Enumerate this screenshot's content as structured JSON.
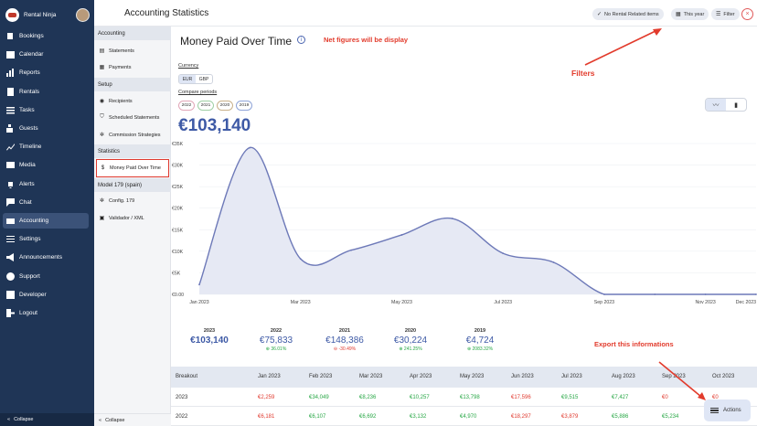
{
  "brand": {
    "name": "Rental Ninja"
  },
  "sidebar": {
    "items": [
      {
        "label": "Bookings",
        "icon": "book-icon"
      },
      {
        "label": "Calendar",
        "icon": "calendar-icon"
      },
      {
        "label": "Reports",
        "icon": "bar-chart-icon"
      },
      {
        "label": "Rentals",
        "icon": "building-icon"
      },
      {
        "label": "Tasks",
        "icon": "tasks-icon"
      },
      {
        "label": "Guests",
        "icon": "guests-icon"
      },
      {
        "label": "Timeline",
        "icon": "trend-icon"
      },
      {
        "label": "Media",
        "icon": "image-icon"
      },
      {
        "label": "Alerts",
        "icon": "bell-icon"
      },
      {
        "label": "Chat",
        "icon": "chat-icon"
      },
      {
        "label": "Accounting",
        "icon": "wallet-icon",
        "active": true
      },
      {
        "label": "Settings",
        "icon": "sliders-icon"
      },
      {
        "label": "Announcements",
        "icon": "megaphone-icon"
      },
      {
        "label": "Support",
        "icon": "help-icon"
      },
      {
        "label": "Developer",
        "icon": "code-icon"
      },
      {
        "label": "Logout",
        "icon": "logout-icon"
      }
    ],
    "collapse": "Collapse"
  },
  "header": {
    "title": "Accounting Statistics",
    "pill_rental": "No Rental Related items",
    "pill_period": "This year",
    "pill_filter": "Filter"
  },
  "subnav": {
    "sections": [
      {
        "title": "Accounting",
        "items": [
          "Statements",
          "Payments"
        ]
      },
      {
        "title": "Setup",
        "items": [
          "Recipients",
          "Scheduled Statements",
          "Commission Strategies"
        ]
      },
      {
        "title": "Statistics",
        "items": [
          "Money Paid Over Time"
        ]
      },
      {
        "title": "Model 179 (spain)",
        "items": [
          "Config. 179",
          "Validador / XML"
        ]
      }
    ],
    "collapse": "Collapse"
  },
  "main": {
    "page_title": "Money Paid Over Time",
    "note_net": "Net figures will be display",
    "note_filters": "Filters",
    "note_export": "Export this informations",
    "currency_label": "Currency",
    "currencies": [
      "EUR",
      "GBP"
    ],
    "selected_currency": "EUR",
    "compare_label": "Compare periods",
    "compare_years": [
      {
        "year": "2022",
        "color": "#e2a7b8"
      },
      {
        "year": "2021",
        "color": "#9fcfa5"
      },
      {
        "year": "2020",
        "color": "#c8b08a"
      },
      {
        "year": "2019",
        "color": "#8fa4d8"
      }
    ],
    "total": "€103,140",
    "actions_label": "Actions"
  },
  "chart_data": {
    "type": "area",
    "x": [
      "Jan 2023",
      "Feb 2023",
      "Mar 2023",
      "Apr 2023",
      "May 2023",
      "Jun 2023",
      "Jul 2023",
      "Aug 2023",
      "Sep 2023",
      "Oct 2023",
      "Nov 2023",
      "Dec 2023"
    ],
    "x_tick_labels": [
      "Jan 2023",
      "Mar 2023",
      "May 2023",
      "Jul 2023",
      "Sep 2023",
      "Nov 2023",
      "Dec 2023"
    ],
    "y_tick_labels": [
      "€0.00",
      "€5K",
      "€10K",
      "€15K",
      "€20K",
      "€25K",
      "€30K",
      "€35K"
    ],
    "ylim": [
      0,
      35000
    ],
    "series": [
      {
        "values": [
          2259,
          34049,
          8236,
          10257,
          13798,
          17596,
          9515,
          7427,
          0,
          0,
          0,
          0
        ]
      }
    ],
    "color": "#6d79b8",
    "fill": "#e6e9f4"
  },
  "year_summary": [
    {
      "year": "2023",
      "value": "€103,140",
      "delta": "",
      "dir": ""
    },
    {
      "year": "2022",
      "value": "€75,833",
      "delta": "36.01%",
      "dir": "up"
    },
    {
      "year": "2021",
      "value": "€148,386",
      "delta": "-30.49%",
      "dir": "down"
    },
    {
      "year": "2020",
      "value": "€30,224",
      "delta": "241.25%",
      "dir": "up"
    },
    {
      "year": "2019",
      "value": "€4,724",
      "delta": "2083.32%",
      "dir": "up"
    }
  ],
  "table": {
    "headers": [
      "Breakout",
      "Jan 2023",
      "Feb 2023",
      "Mar 2023",
      "Apr 2023",
      "May 2023",
      "Jun 2023",
      "Jul 2023",
      "Aug 2023",
      "Sep 2023",
      "Oct 2023"
    ],
    "rows": [
      {
        "label": "2023",
        "cells": [
          {
            "v": "€2,259",
            "c": "neg"
          },
          {
            "v": "€34,049",
            "c": "pos"
          },
          {
            "v": "€8,236",
            "c": "pos"
          },
          {
            "v": "€10,257",
            "c": "pos"
          },
          {
            "v": "€13,798",
            "c": "pos"
          },
          {
            "v": "€17,596",
            "c": "neg"
          },
          {
            "v": "€9,515",
            "c": "pos"
          },
          {
            "v": "€7,427",
            "c": "pos"
          },
          {
            "v": "€0",
            "c": "neg"
          },
          {
            "v": "€0",
            "c": "neg"
          }
        ]
      },
      {
        "label": "2022",
        "cells": [
          {
            "v": "€6,181",
            "c": "neg"
          },
          {
            "v": "€6,107",
            "c": "pos"
          },
          {
            "v": "€6,692",
            "c": "pos"
          },
          {
            "v": "€3,132",
            "c": "pos"
          },
          {
            "v": "€4,970",
            "c": "pos"
          },
          {
            "v": "€18,297",
            "c": "neg"
          },
          {
            "v": "€3,879",
            "c": "neg"
          },
          {
            "v": "€5,886",
            "c": "pos"
          },
          {
            "v": "€5,234",
            "c": "pos"
          },
          {
            "v": "",
            "c": "pos"
          }
        ]
      }
    ]
  }
}
